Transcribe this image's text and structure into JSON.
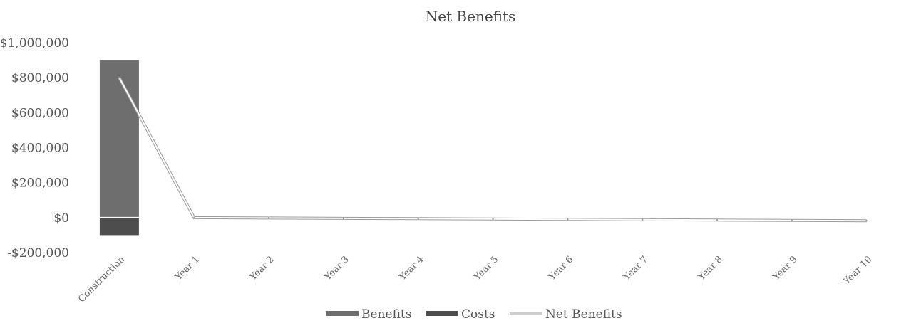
{
  "chart_data": {
    "type": "bar",
    "title": "Net Benefits",
    "xlabel": "",
    "ylabel": "",
    "ylim": [
      -200000,
      1000000
    ],
    "y_ticks": [
      1000000,
      800000,
      600000,
      400000,
      200000,
      0,
      -200000
    ],
    "y_tick_labels": [
      "$1,000,000",
      "$800,000",
      "$600,000",
      "$400,000",
      "$200,000",
      "$0",
      "-$200,000"
    ],
    "categories": [
      "Construction",
      "Year 1",
      "Year 2",
      "Year 3",
      "Year 4",
      "Year 5",
      "Year 6",
      "Year 7",
      "Year 8",
      "Year 9",
      "Year 10"
    ],
    "series": [
      {
        "name": "Benefits",
        "kind": "bar",
        "values": [
          900000,
          0,
          0,
          0,
          0,
          0,
          0,
          0,
          0,
          0,
          0
        ]
      },
      {
        "name": "Costs",
        "kind": "bar",
        "values": [
          -100000,
          0,
          0,
          0,
          0,
          0,
          0,
          0,
          0,
          0,
          0
        ]
      },
      {
        "name": "Net Benefits",
        "kind": "line",
        "values": [
          800000,
          0,
          -2000,
          -4000,
          -6000,
          -8000,
          -10000,
          -12000,
          -14000,
          -16000,
          -18000
        ]
      }
    ],
    "grid": false,
    "legend_position": "bottom"
  },
  "colors": {
    "benefits": "#6e6e6e",
    "costs": "#4d4d4d",
    "net_benefits": "#c9c9c9",
    "text": "#555555"
  }
}
